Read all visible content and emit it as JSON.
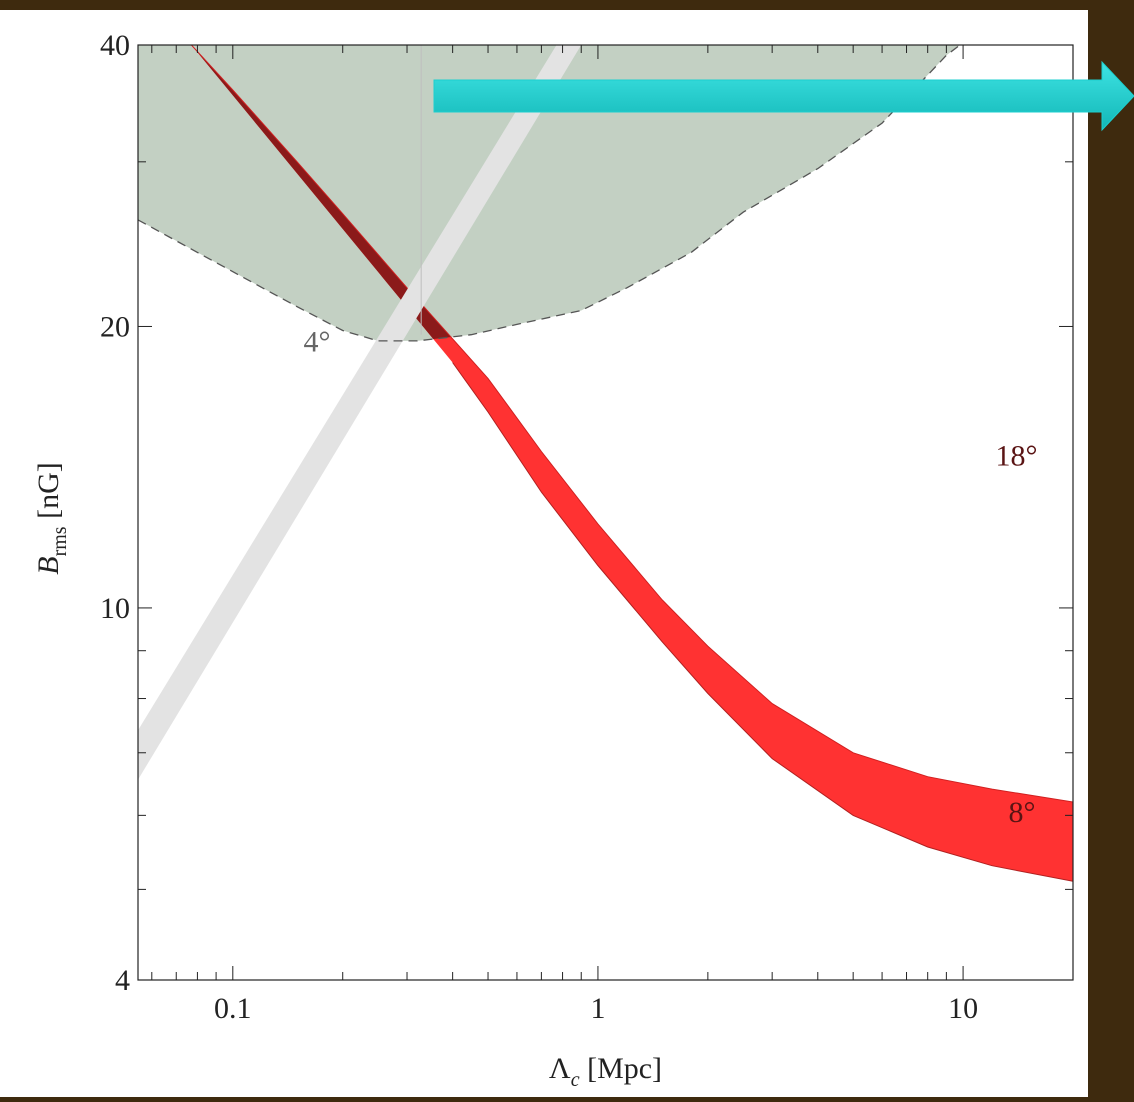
{
  "chart_data": {
    "type": "area",
    "xlabel": "Λc [Mpc]",
    "xlabel_parts": {
      "main": "Λ",
      "sub": "c",
      "rest": " [Mpc]"
    },
    "ylabel": "Brms [nG]",
    "ylabel_parts": {
      "main": "B",
      "sub": "rms",
      "rest": " [nG]"
    },
    "x_scale": "log",
    "y_scale": "log",
    "xlim": [
      0.055,
      20
    ],
    "ylim": [
      4,
      40
    ],
    "x_ticks": [
      {
        "value": 0.1,
        "label": "0.1"
      },
      {
        "value": 1,
        "label": "1"
      },
      {
        "value": 10,
        "label": "10"
      }
    ],
    "y_ticks": [
      {
        "value": 4,
        "label": "4"
      },
      {
        "value": 10,
        "label": "10"
      },
      {
        "value": 20,
        "label": "20"
      },
      {
        "value": 40,
        "label": "40"
      }
    ],
    "grid": false,
    "regions": [
      {
        "id": "gray-excluded",
        "color": "#c3d0c3",
        "boundary_dashed": true,
        "boundary": [
          [
            0.055,
            26.0
          ],
          [
            0.08,
            24.0
          ],
          [
            0.15,
            21.0
          ],
          [
            0.2,
            19.8
          ],
          [
            0.25,
            19.3
          ],
          [
            0.32,
            19.3
          ],
          [
            0.45,
            19.6
          ],
          [
            0.6,
            20.1
          ],
          [
            0.9,
            20.8
          ],
          [
            1.2,
            22.0
          ],
          [
            1.8,
            24.0
          ],
          [
            2.5,
            26.5
          ],
          [
            4,
            29.5
          ],
          [
            6,
            33.0
          ],
          [
            9,
            39.0
          ],
          [
            9.8,
            40
          ]
        ]
      },
      {
        "id": "light-gray-band",
        "color": "#e3e3e3",
        "lower": [
          [
            0.055,
            6.55
          ],
          [
            0.9,
            40
          ]
        ],
        "upper": [
          [
            0.055,
            7.4
          ],
          [
            0.77,
            40
          ]
        ]
      },
      {
        "id": "red-band",
        "color": "#ff3232",
        "color_overlap": "#8b1a1a",
        "upper_18deg": [
          [
            0.077,
            40
          ],
          [
            0.1,
            35.8
          ],
          [
            0.15,
            30.0
          ],
          [
            0.2,
            26.4
          ],
          [
            0.3,
            22.0
          ],
          [
            0.5,
            17.6
          ],
          [
            0.7,
            14.7
          ],
          [
            1,
            12.3
          ],
          [
            1.5,
            10.2
          ],
          [
            2,
            9.1
          ],
          [
            3,
            7.9
          ],
          [
            5,
            7.0
          ],
          [
            8,
            6.6
          ],
          [
            12,
            6.4
          ],
          [
            20,
            6.2
          ]
        ],
        "lower_8deg": [
          [
            0.4,
            18.3
          ],
          [
            0.5,
            16.2
          ],
          [
            0.7,
            13.3
          ],
          [
            1,
            11.1
          ],
          [
            1.5,
            9.2
          ],
          [
            2,
            8.1
          ],
          [
            3,
            6.9
          ],
          [
            5,
            6.0
          ],
          [
            8,
            5.55
          ],
          [
            12,
            5.3
          ],
          [
            20,
            5.1
          ]
        ],
        "note": "upper edge = 18°, lower edge = 8°"
      }
    ],
    "annotations": [
      {
        "text": "4°",
        "x": 0.17,
        "y": 18.8,
        "color": "#666666"
      },
      {
        "text": "18°",
        "x": 14.0,
        "y": 14.2,
        "color": "#5a1414"
      },
      {
        "text": "8°",
        "x": 14.5,
        "y": 5.9,
        "color": "#5a1414"
      }
    ],
    "arrow": {
      "color": "#1ccfcf",
      "direction": "right"
    }
  }
}
